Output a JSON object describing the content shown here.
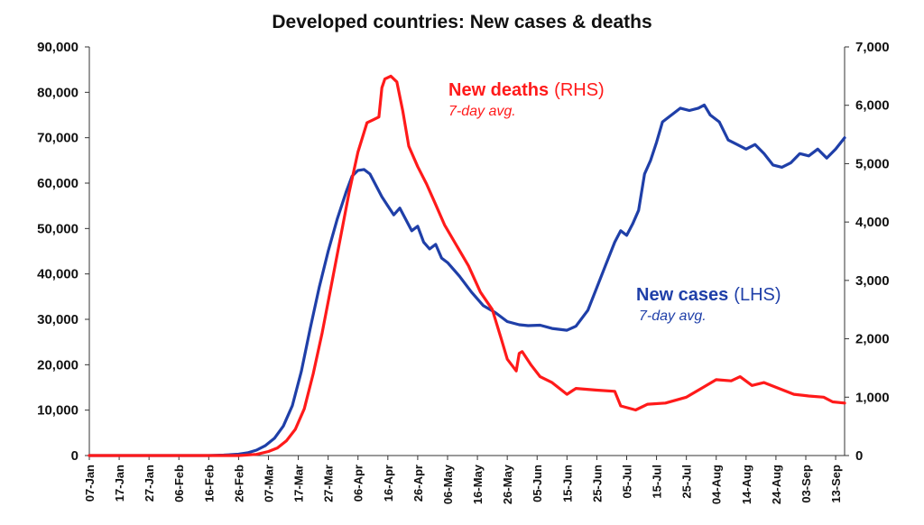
{
  "chart_data": {
    "type": "line",
    "title": "Developed countries: New cases & deaths",
    "colors": {
      "cases": "#1f3fa8",
      "deaths": "#ff1a1a",
      "axis": "#333333"
    },
    "axes": {
      "left": {
        "min": 0,
        "max": 90000,
        "ticks": [
          "0",
          "10,000",
          "20,000",
          "30,000",
          "40,000",
          "50,000",
          "60,000",
          "70,000",
          "80,000",
          "90,000"
        ]
      },
      "right": {
        "min": 0,
        "max": 7000,
        "ticks": [
          "0",
          "1,000",
          "2,000",
          "3,000",
          "4,000",
          "5,000",
          "6,000",
          "7,000"
        ]
      }
    },
    "x": {
      "start": "07-Jan",
      "end": "16-Sep",
      "ticks": [
        "07-Jan",
        "17-Jan",
        "27-Jan",
        "06-Feb",
        "16-Feb",
        "26-Feb",
        "07-Mar",
        "17-Mar",
        "27-Mar",
        "06-Apr",
        "16-Apr",
        "26-Apr",
        "06-May",
        "16-May",
        "26-May",
        "05-Jun",
        "15-Jun",
        "25-Jun",
        "05-Jul",
        "15-Jul",
        "25-Jul",
        "04-Aug",
        "14-Aug",
        "24-Aug",
        "03-Sep",
        "13-Sep"
      ]
    },
    "annotations": {
      "deaths": {
        "name": "New deaths",
        "unit": "(RHS)",
        "sub": "7-day avg."
      },
      "cases": {
        "name": "New cases",
        "unit": "(LHS)",
        "sub": "7-day avg."
      }
    },
    "series": [
      {
        "key": "cases",
        "axis": "left",
        "points": [
          [
            "07-Jan",
            0
          ],
          [
            "17-Jan",
            0
          ],
          [
            "27-Jan",
            0
          ],
          [
            "06-Feb",
            0
          ],
          [
            "16-Feb",
            0
          ],
          [
            "21-Feb",
            100
          ],
          [
            "26-Feb",
            300
          ],
          [
            "29-Feb",
            600
          ],
          [
            "03-Mar",
            1200
          ],
          [
            "06-Mar",
            2200
          ],
          [
            "09-Mar",
            3800
          ],
          [
            "12-Mar",
            6500
          ],
          [
            "15-Mar",
            11000
          ],
          [
            "18-Mar",
            18500
          ],
          [
            "21-Mar",
            28000
          ],
          [
            "24-Mar",
            37000
          ],
          [
            "27-Mar",
            45000
          ],
          [
            "30-Mar",
            52000
          ],
          [
            "02-Apr",
            58000
          ],
          [
            "04-Apr",
            61500
          ],
          [
            "06-Apr",
            62800
          ],
          [
            "08-Apr",
            63000
          ],
          [
            "10-Apr",
            62000
          ],
          [
            "12-Apr",
            59500
          ],
          [
            "14-Apr",
            57000
          ],
          [
            "16-Apr",
            55000
          ],
          [
            "18-Apr",
            53000
          ],
          [
            "20-Apr",
            54500
          ],
          [
            "22-Apr",
            52000
          ],
          [
            "24-Apr",
            49500
          ],
          [
            "26-Apr",
            50500
          ],
          [
            "28-Apr",
            47000
          ],
          [
            "30-Apr",
            45500
          ],
          [
            "02-May",
            46500
          ],
          [
            "04-May",
            43500
          ],
          [
            "06-May",
            42500
          ],
          [
            "10-May",
            39500
          ],
          [
            "14-May",
            36000
          ],
          [
            "18-May",
            33000
          ],
          [
            "22-May",
            31500
          ],
          [
            "26-May",
            29500
          ],
          [
            "30-May",
            28800
          ],
          [
            "02-Jun",
            28600
          ],
          [
            "06-Jun",
            28700
          ],
          [
            "10-Jun",
            28000
          ],
          [
            "15-Jun",
            27600
          ],
          [
            "18-Jun",
            28500
          ],
          [
            "22-Jun",
            32000
          ],
          [
            "25-Jun",
            37000
          ],
          [
            "28-Jun",
            42000
          ],
          [
            "01-Jul",
            47000
          ],
          [
            "03-Jul",
            49500
          ],
          [
            "05-Jul",
            48500
          ],
          [
            "07-Jul",
            51000
          ],
          [
            "09-Jul",
            54000
          ],
          [
            "11-Jul",
            62000
          ],
          [
            "13-Jul",
            65000
          ],
          [
            "15-Jul",
            69000
          ],
          [
            "17-Jul",
            73500
          ],
          [
            "20-Jul",
            75000
          ],
          [
            "23-Jul",
            76500
          ],
          [
            "26-Jul",
            76000
          ],
          [
            "29-Jul",
            76500
          ],
          [
            "31-Jul",
            77200
          ],
          [
            "02-Aug",
            75000
          ],
          [
            "05-Aug",
            73500
          ],
          [
            "08-Aug",
            69500
          ],
          [
            "11-Aug",
            68500
          ],
          [
            "14-Aug",
            67500
          ],
          [
            "17-Aug",
            68500
          ],
          [
            "20-Aug",
            66500
          ],
          [
            "23-Aug",
            64000
          ],
          [
            "26-Aug",
            63500
          ],
          [
            "29-Aug",
            64500
          ],
          [
            "01-Sep",
            66500
          ],
          [
            "04-Sep",
            66000
          ],
          [
            "07-Sep",
            67500
          ],
          [
            "10-Sep",
            65500
          ],
          [
            "13-Sep",
            67500
          ],
          [
            "16-Sep",
            70000
          ]
        ]
      },
      {
        "key": "deaths",
        "axis": "right",
        "points": [
          [
            "07-Jan",
            0
          ],
          [
            "17-Jan",
            0
          ],
          [
            "27-Jan",
            0
          ],
          [
            "06-Feb",
            0
          ],
          [
            "16-Feb",
            0
          ],
          [
            "26-Feb",
            0
          ],
          [
            "03-Mar",
            20
          ],
          [
            "07-Mar",
            70
          ],
          [
            "10-Mar",
            130
          ],
          [
            "13-Mar",
            250
          ],
          [
            "16-Mar",
            450
          ],
          [
            "19-Mar",
            800
          ],
          [
            "22-Mar",
            1400
          ],
          [
            "25-Mar",
            2100
          ],
          [
            "28-Mar",
            2900
          ],
          [
            "31-Mar",
            3700
          ],
          [
            "03-Apr",
            4500
          ],
          [
            "06-Apr",
            5200
          ],
          [
            "09-Apr",
            5700
          ],
          [
            "11-Apr",
            5750
          ],
          [
            "13-Apr",
            5800
          ],
          [
            "14-Apr",
            6300
          ],
          [
            "15-Apr",
            6450
          ],
          [
            "17-Apr",
            6500
          ],
          [
            "19-Apr",
            6400
          ],
          [
            "21-Apr",
            5900
          ],
          [
            "23-Apr",
            5300
          ],
          [
            "26-Apr",
            4950
          ],
          [
            "29-Apr",
            4650
          ],
          [
            "02-May",
            4300
          ],
          [
            "05-May",
            3950
          ],
          [
            "09-May",
            3600
          ],
          [
            "13-May",
            3250
          ],
          [
            "17-May",
            2800
          ],
          [
            "21-May",
            2500
          ],
          [
            "24-May",
            2000
          ],
          [
            "26-May",
            1650
          ],
          [
            "29-May",
            1450
          ],
          [
            "30-May",
            1750
          ],
          [
            "31-May",
            1780
          ],
          [
            "03-Jun",
            1550
          ],
          [
            "06-Jun",
            1350
          ],
          [
            "10-Jun",
            1250
          ],
          [
            "15-Jun",
            1050
          ],
          [
            "18-Jun",
            1150
          ],
          [
            "25-Jun",
            1120
          ],
          [
            "01-Jul",
            1100
          ],
          [
            "03-Jul",
            850
          ],
          [
            "08-Jul",
            780
          ],
          [
            "12-Jul",
            880
          ],
          [
            "18-Jul",
            900
          ],
          [
            "25-Jul",
            1000
          ],
          [
            "30-Jul",
            1150
          ],
          [
            "04-Aug",
            1300
          ],
          [
            "09-Aug",
            1280
          ],
          [
            "12-Aug",
            1350
          ],
          [
            "16-Aug",
            1200
          ],
          [
            "20-Aug",
            1250
          ],
          [
            "25-Aug",
            1150
          ],
          [
            "30-Aug",
            1050
          ],
          [
            "04-Sep",
            1020
          ],
          [
            "09-Sep",
            1000
          ],
          [
            "12-Sep",
            920
          ],
          [
            "16-Sep",
            900
          ]
        ]
      }
    ]
  }
}
